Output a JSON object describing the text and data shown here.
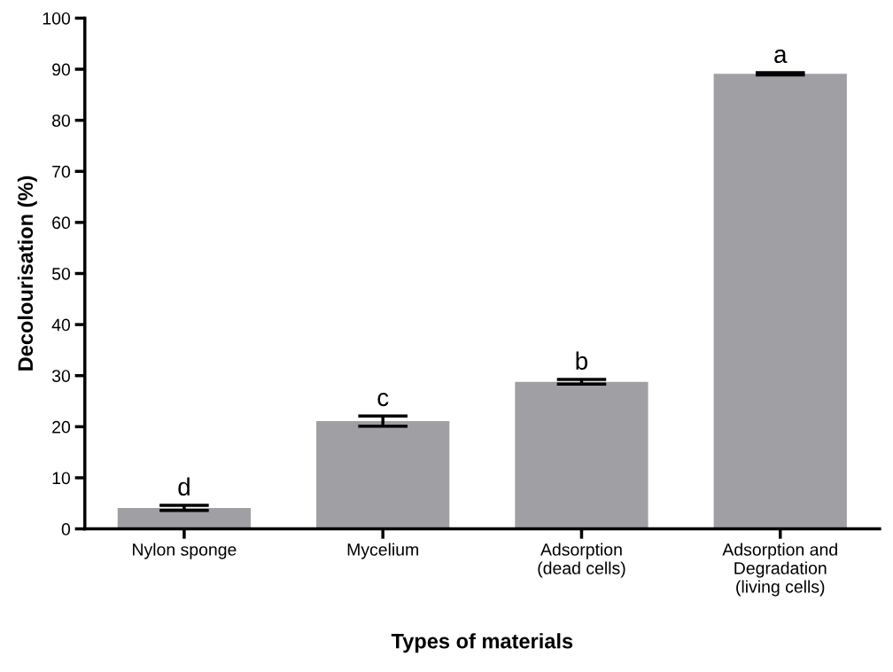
{
  "chart_data": {
    "type": "bar",
    "xlabel": "Types of materials",
    "ylabel": "Decolourisation (%)",
    "categories": [
      "Nylon sponge",
      "Mycelium",
      "Adsorption\n(dead cells)",
      "Adsorption and\nDegradation\n(living cells)"
    ],
    "values": [
      4.1,
      21.1,
      28.8,
      89.1
    ],
    "errors": [
      0.5,
      1.0,
      0.45,
      0.2
    ],
    "color": "#a0a0a4",
    "ylim": [
      0,
      100
    ],
    "yticks": [
      0,
      10,
      20,
      30,
      40,
      50,
      60,
      70,
      80,
      90,
      100
    ],
    "grid": false,
    "annotations": [
      {
        "text": "d",
        "x": "Nylon sponge",
        "y": 4.6
      },
      {
        "text": "c",
        "x": "Mycelium",
        "y": 22.1
      },
      {
        "text": "b",
        "x": "Adsorption\n(dead cells)",
        "y": 29.25
      },
      {
        "text": "a",
        "x": "Adsorption and\nDegradation\n(living cells)",
        "y": 89.3
      }
    ]
  }
}
